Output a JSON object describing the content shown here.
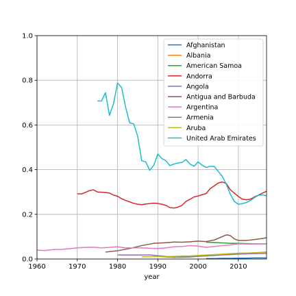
{
  "chart_data": {
    "type": "line",
    "title": "",
    "xlabel": "year",
    "ylabel": "",
    "xlim": [
      1960,
      2017
    ],
    "ylim": [
      0,
      1.0
    ],
    "xticks": [
      1960,
      1970,
      1980,
      1990,
      2000,
      2010
    ],
    "yticks": [
      0.0,
      0.2,
      0.4,
      0.6,
      0.8,
      1.0
    ],
    "xtick_labels": [
      "1960",
      "1970",
      "1980",
      "1990",
      "2000",
      "2010"
    ],
    "ytick_labels": [
      "0.0",
      "0.2",
      "0.4",
      "0.6",
      "0.8",
      "1.0"
    ],
    "grid": true,
    "legend_position": "top-right",
    "series": [
      {
        "name": "Afghanistan",
        "color": "#1f77b4",
        "x": [
          2002,
          2004,
          2006,
          2008,
          2010,
          2012,
          2014,
          2016,
          2017
        ],
        "y": [
          0.002,
          0.002,
          0.003,
          0.003,
          0.004,
          0.004,
          0.005,
          0.005,
          0.005
        ]
      },
      {
        "name": "Albania",
        "color": "#ff7f0e",
        "x": [
          1990,
          1992,
          1994,
          1996,
          1998,
          2000,
          2002,
          2004,
          2006,
          2008,
          2010,
          2012,
          2014,
          2016,
          2017
        ],
        "y": [
          0.012,
          0.009,
          0.008,
          0.009,
          0.01,
          0.012,
          0.014,
          0.016,
          0.018,
          0.02,
          0.023,
          0.026,
          0.028,
          0.03,
          0.031
        ]
      },
      {
        "name": "American Samoa",
        "color": "#2ca02c",
        "x": [
          2002,
          2004,
          2006,
          2008,
          2010,
          2012,
          2014,
          2016,
          2017
        ],
        "y": [
          0.075,
          0.074,
          0.072,
          0.07,
          0.07,
          0.069,
          0.068,
          0.068,
          0.068
        ]
      },
      {
        "name": "Andorra",
        "color": "#d62728",
        "x": [
          1970,
          1971,
          1972,
          1973,
          1974,
          1975,
          1976,
          1977,
          1978,
          1979,
          1980,
          1981,
          1982,
          1983,
          1984,
          1985,
          1986,
          1987,
          1988,
          1989,
          1990,
          1991,
          1992,
          1993,
          1994,
          1995,
          1996,
          1997,
          1998,
          1999,
          2000,
          2001,
          2002,
          2003,
          2004,
          2005,
          2006,
          2007,
          2008,
          2009,
          2010,
          2011,
          2012,
          2013,
          2014,
          2015,
          2016,
          2017
        ],
        "y": [
          0.292,
          0.291,
          0.298,
          0.306,
          0.31,
          0.3,
          0.299,
          0.298,
          0.295,
          0.286,
          0.281,
          0.27,
          0.262,
          0.256,
          0.249,
          0.245,
          0.243,
          0.246,
          0.248,
          0.25,
          0.249,
          0.245,
          0.24,
          0.23,
          0.228,
          0.232,
          0.24,
          0.258,
          0.267,
          0.278,
          0.282,
          0.288,
          0.293,
          0.315,
          0.327,
          0.34,
          0.345,
          0.338,
          0.31,
          0.295,
          0.28,
          0.268,
          0.265,
          0.268,
          0.278,
          0.286,
          0.295,
          0.303
        ]
      },
      {
        "name": "Angola",
        "color": "#9467bd",
        "x": [
          1980,
          1982,
          1984,
          1986,
          1988,
          1990,
          1992,
          1994,
          1996,
          1998,
          2000,
          2002,
          2004,
          2006,
          2008,
          2010,
          2012,
          2014,
          2016,
          2017
        ],
        "y": [
          0.018,
          0.018,
          0.018,
          0.018,
          0.018,
          0.015,
          0.012,
          0.01,
          0.011,
          0.012,
          0.013,
          0.014,
          0.016,
          0.019,
          0.02,
          0.022,
          0.023,
          0.024,
          0.025,
          0.025
        ]
      },
      {
        "name": "Antigua and Barbuda",
        "color": "#8c564b",
        "x": [
          1977,
          1980,
          1983,
          1986,
          1989,
          1992,
          1994,
          1996,
          1998,
          2000,
          2002,
          2004,
          2006,
          2007,
          2008,
          2009,
          2010,
          2012,
          2014,
          2016,
          2017
        ],
        "y": [
          0.031,
          0.037,
          0.047,
          0.06,
          0.07,
          0.073,
          0.076,
          0.075,
          0.077,
          0.08,
          0.078,
          0.085,
          0.1,
          0.108,
          0.105,
          0.09,
          0.083,
          0.083,
          0.087,
          0.092,
          0.095
        ]
      },
      {
        "name": "Argentina",
        "color": "#e377c2",
        "x": [
          1960,
          1962,
          1964,
          1966,
          1968,
          1970,
          1972,
          1974,
          1976,
          1978,
          1980,
          1982,
          1984,
          1986,
          1988,
          1990,
          1992,
          1994,
          1996,
          1998,
          2000,
          2002,
          2004,
          2006,
          2008,
          2010,
          2012,
          2014,
          2016,
          2017
        ],
        "y": [
          0.04,
          0.038,
          0.042,
          0.043,
          0.046,
          0.05,
          0.052,
          0.053,
          0.05,
          0.052,
          0.055,
          0.05,
          0.05,
          0.05,
          0.048,
          0.047,
          0.05,
          0.055,
          0.056,
          0.06,
          0.058,
          0.052,
          0.056,
          0.06,
          0.063,
          0.068,
          0.067,
          0.067,
          0.068,
          0.068
        ]
      },
      {
        "name": "Armenia",
        "color": "#7f7f7f",
        "x": [
          1992,
          1994,
          1996,
          1998,
          2000,
          2002,
          2004,
          2006,
          2008,
          2010,
          2012,
          2014,
          2016,
          2017
        ],
        "y": [
          0.01,
          0.008,
          0.008,
          0.009,
          0.012,
          0.015,
          0.017,
          0.02,
          0.022,
          0.024,
          0.026,
          0.027,
          0.028,
          0.028
        ]
      },
      {
        "name": "Aruba",
        "color": "#bcbd22",
        "x": [
          1986,
          1988,
          1990,
          1992,
          1994,
          1996,
          1998,
          2000,
          2002,
          2004,
          2006,
          2008,
          2010,
          2012,
          2014,
          2016,
          2017
        ],
        "y": [
          0.01,
          0.01,
          0.011,
          0.011,
          0.012,
          0.013,
          0.014,
          0.016,
          0.018,
          0.02,
          0.022,
          0.024,
          0.026,
          0.027,
          0.028,
          0.029,
          0.029
        ]
      },
      {
        "name": "United Arab Emirates",
        "color": "#17becf",
        "x": [
          1975,
          1976,
          1977,
          1978,
          1979,
          1980,
          1981,
          1982,
          1983,
          1984,
          1985,
          1986,
          1987,
          1988,
          1989,
          1990,
          1991,
          1992,
          1993,
          1994,
          1995,
          1996,
          1997,
          1998,
          1999,
          2000,
          2001,
          2002,
          2003,
          2004,
          2005,
          2006,
          2007,
          2008,
          2009,
          2010,
          2011,
          2012,
          2013,
          2014,
          2015,
          2016,
          2017
        ],
        "y": [
          0.708,
          0.707,
          0.745,
          0.643,
          0.695,
          0.788,
          0.768,
          0.68,
          0.61,
          0.605,
          0.55,
          0.44,
          0.435,
          0.397,
          0.42,
          0.47,
          0.45,
          0.44,
          0.418,
          0.425,
          0.43,
          0.432,
          0.445,
          0.425,
          0.415,
          0.435,
          0.42,
          0.41,
          0.415,
          0.415,
          0.392,
          0.37,
          0.335,
          0.29,
          0.258,
          0.245,
          0.248,
          0.253,
          0.262,
          0.275,
          0.285,
          0.287,
          0.283
        ]
      }
    ]
  }
}
